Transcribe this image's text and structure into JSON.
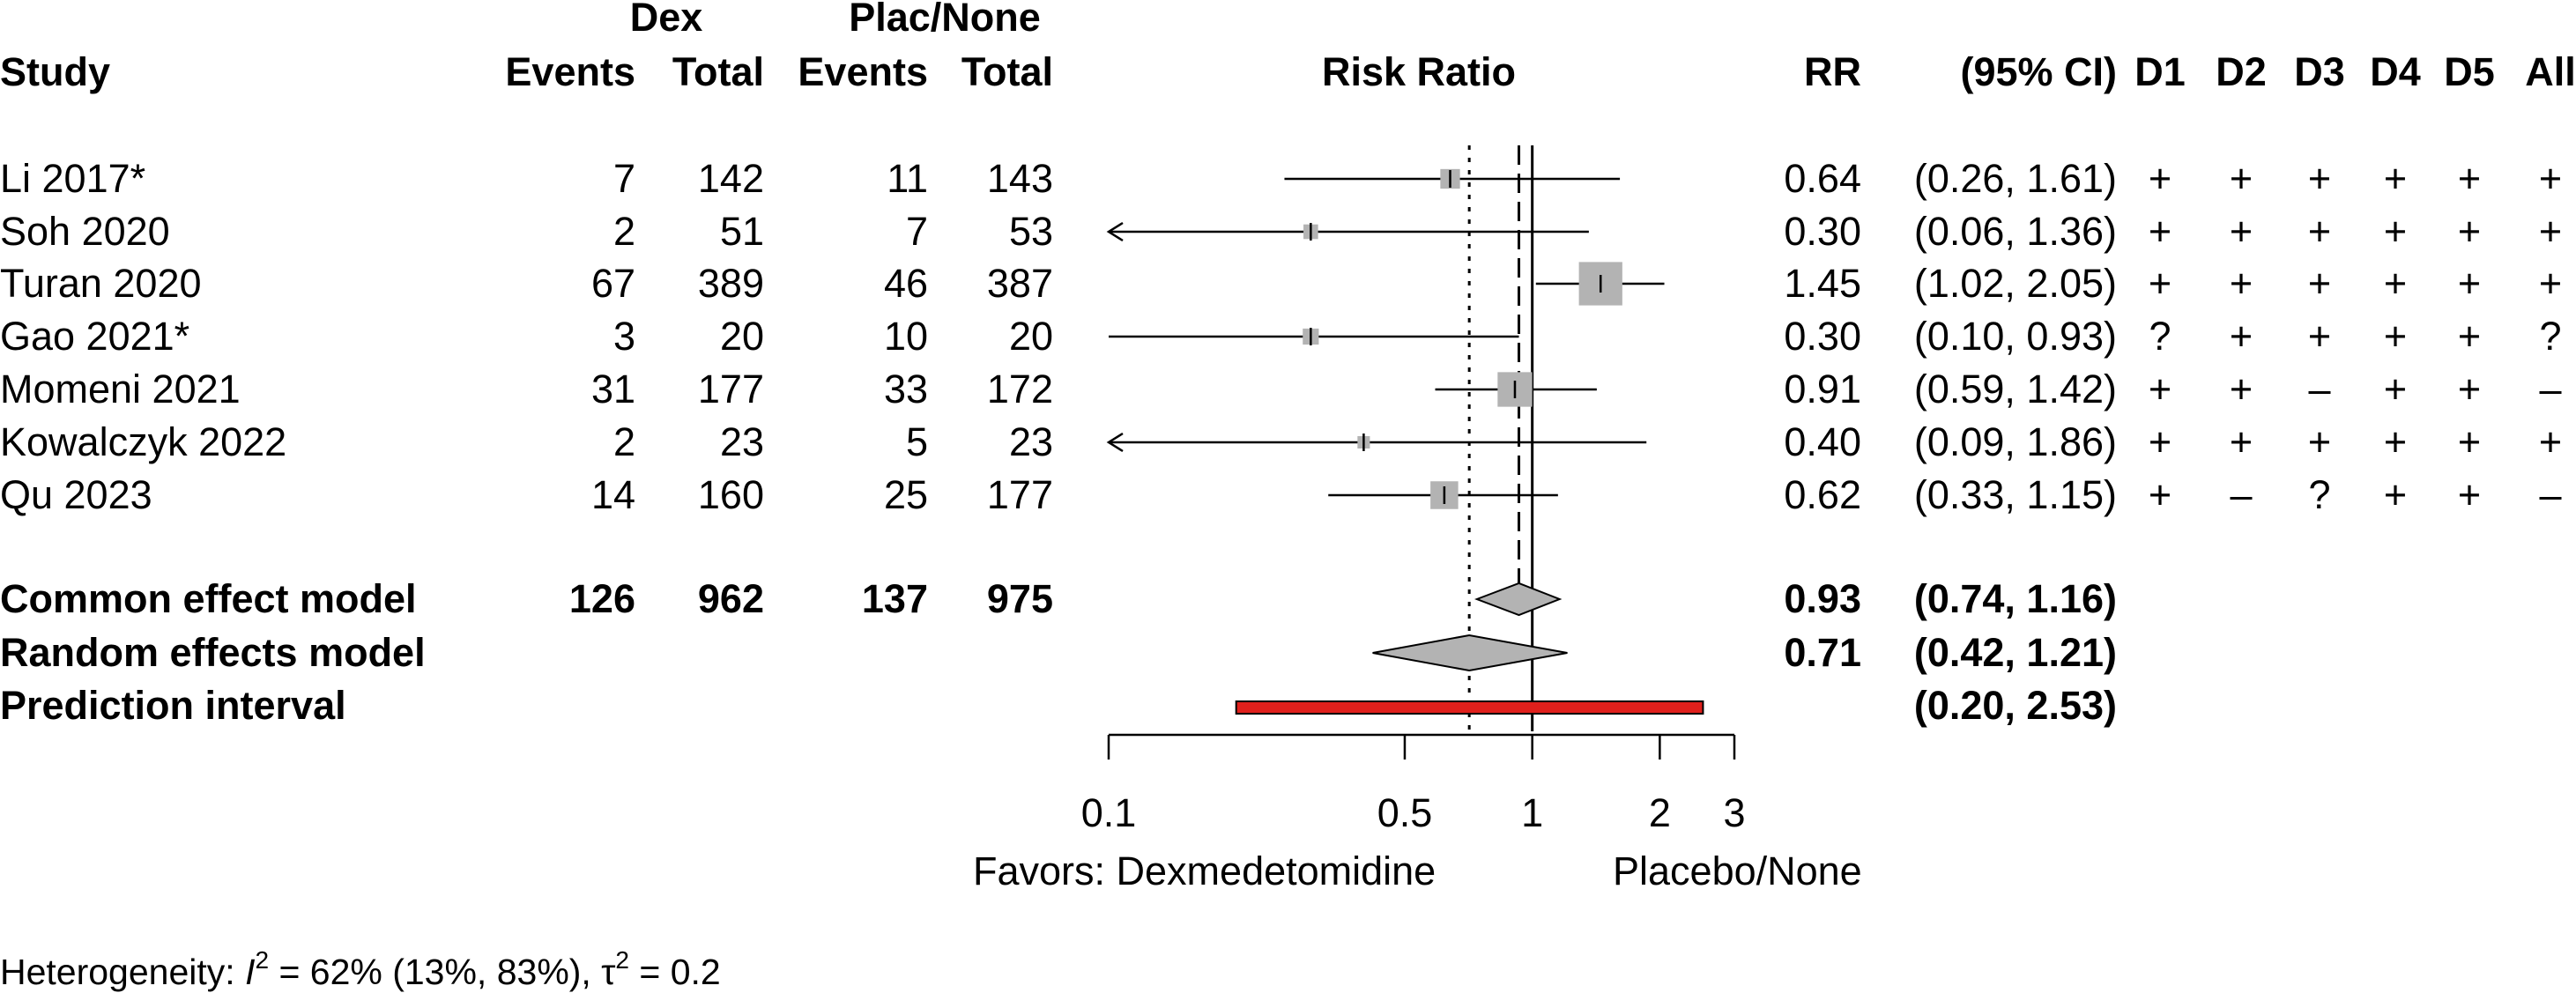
{
  "headers": {
    "study": "Study",
    "dex": "Dex",
    "plac": "Plac/None",
    "events": "Events",
    "total": "Total",
    "risk_ratio": "Risk Ratio",
    "rr": "RR",
    "ci": "(95% CI)",
    "domains": [
      "D1",
      "D2",
      "D3",
      "D4",
      "D5",
      "All"
    ]
  },
  "studies": [
    {
      "study": "Li 2017*",
      "dex_events": "7",
      "dex_total": "142",
      "plac_events": "11",
      "plac_total": "143",
      "rr": "0.64",
      "ci": "(0.26, 1.61)",
      "risk": [
        "+",
        "+",
        "+",
        "+",
        "+",
        "+"
      ]
    },
    {
      "study": "Soh 2020",
      "dex_events": "2",
      "dex_total": "51",
      "plac_events": "7",
      "plac_total": "53",
      "rr": "0.30",
      "ci": "(0.06, 1.36)",
      "risk": [
        "+",
        "+",
        "+",
        "+",
        "+",
        "+"
      ]
    },
    {
      "study": "Turan 2020",
      "dex_events": "67",
      "dex_total": "389",
      "plac_events": "46",
      "plac_total": "387",
      "rr": "1.45",
      "ci": "(1.02, 2.05)",
      "risk": [
        "+",
        "+",
        "+",
        "+",
        "+",
        "+"
      ]
    },
    {
      "study": "Gao 2021*",
      "dex_events": "3",
      "dex_total": "20",
      "plac_events": "10",
      "plac_total": "20",
      "rr": "0.30",
      "ci": "(0.10, 0.93)",
      "risk": [
        "?",
        "+",
        "+",
        "+",
        "+",
        "?"
      ]
    },
    {
      "study": "Momeni 2021",
      "dex_events": "31",
      "dex_total": "177",
      "plac_events": "33",
      "plac_total": "172",
      "rr": "0.91",
      "ci": "(0.59, 1.42)",
      "risk": [
        "+",
        "+",
        "–",
        "+",
        "+",
        "–"
      ]
    },
    {
      "study": "Kowalczyk 2022",
      "dex_events": "2",
      "dex_total": "23",
      "plac_events": "5",
      "plac_total": "23",
      "rr": "0.40",
      "ci": "(0.09, 1.86)",
      "risk": [
        "+",
        "+",
        "+",
        "+",
        "+",
        "+"
      ]
    },
    {
      "study": "Qu 2023",
      "dex_events": "14",
      "dex_total": "160",
      "plac_events": "25",
      "plac_total": "177",
      "rr": "0.62",
      "ci": "(0.33, 1.15)",
      "risk": [
        "+",
        "–",
        "?",
        "+",
        "+",
        "–"
      ]
    }
  ],
  "common": {
    "label": "Common effect model",
    "dex_events": "126",
    "dex_total": "962",
    "plac_events": "137",
    "plac_total": "975",
    "rr": "0.93",
    "ci": "(0.74, 1.16)"
  },
  "random": {
    "label": "Random effects model",
    "rr": "0.71",
    "ci": "(0.42, 1.21)"
  },
  "prediction": {
    "label": "Prediction interval",
    "ci": "(0.20, 2.53)"
  },
  "axis": {
    "left_label": "Favors: Dexmedetomidine",
    "right_label": "Placebo/None"
  },
  "heterogeneity": {
    "prefix": "Heterogeneity: ",
    "i_sym": "I",
    "i_exp": "2",
    "i_val": " = 62% (13%, 83%), ",
    "tau_sym": "τ",
    "tau_exp": "2",
    "tau_val": " = 0.2"
  },
  "chart_data": {
    "type": "forest",
    "scale": "log",
    "xlim": [
      0.1,
      3
    ],
    "ticks": [
      0.1,
      0.5,
      1,
      2,
      3
    ],
    "tick_labels": [
      "0.1",
      "0.5",
      "1",
      "2",
      "3"
    ],
    "null_value": 1,
    "studies": [
      {
        "rr": 0.64,
        "lo": 0.26,
        "hi": 1.61,
        "weight": 4.5
      },
      {
        "rr": 0.3,
        "lo": 0.06,
        "hi": 1.36,
        "weight": 2.5
      },
      {
        "rr": 1.45,
        "lo": 1.02,
        "hi": 2.05,
        "weight": 22
      },
      {
        "rr": 0.3,
        "lo": 0.1,
        "hi": 0.93,
        "weight": 3.0
      },
      {
        "rr": 0.91,
        "lo": 0.59,
        "hi": 1.42,
        "weight": 14
      },
      {
        "rr": 0.4,
        "lo": 0.09,
        "hi": 1.86,
        "weight": 1.8
      },
      {
        "rr": 0.62,
        "lo": 0.33,
        "hi": 1.15,
        "weight": 9
      }
    ],
    "common": {
      "rr": 0.93,
      "lo": 0.74,
      "hi": 1.16
    },
    "random": {
      "rr": 0.71,
      "lo": 0.42,
      "hi": 1.21
    },
    "prediction": {
      "lo": 0.2,
      "hi": 2.53
    },
    "colors": {
      "box": "#b3b3b3",
      "diamond": "#b3b3b3",
      "prediction": "#e0201c"
    }
  }
}
